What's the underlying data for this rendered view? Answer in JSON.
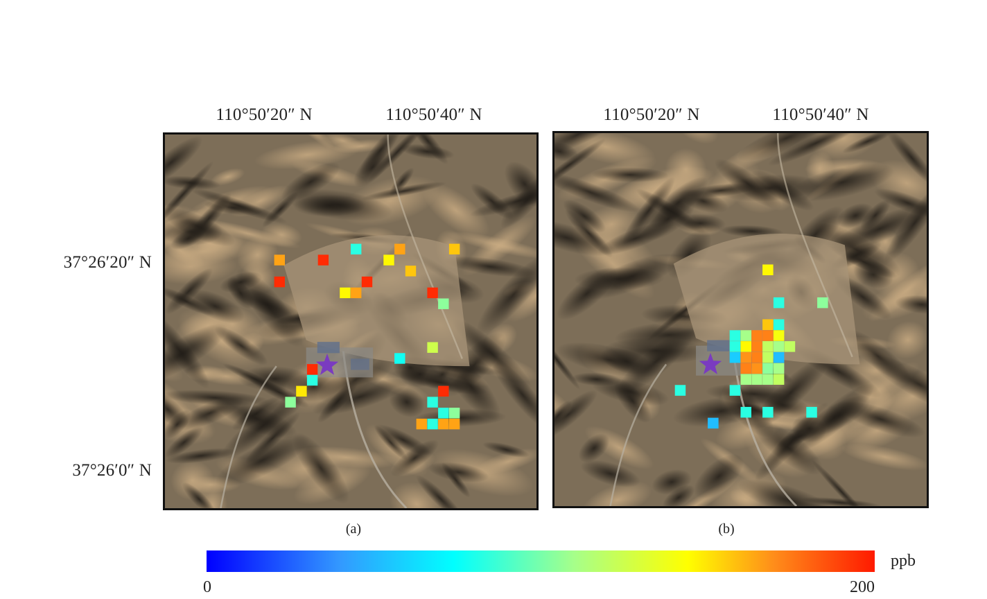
{
  "top_axis_labels": [
    "110°50′20″ N",
    "110°50′40″ N"
  ],
  "left_axis_labels": [
    "37°26′20″ N",
    "37°26′0″ N"
  ],
  "panels": [
    {
      "caption": "(a)",
      "source_marker": "star-icon",
      "cells": [
        {
          "col": 10,
          "row": 11,
          "value": 160
        },
        {
          "col": 14,
          "row": 11,
          "value": 195
        },
        {
          "col": 17,
          "row": 10,
          "value": 75
        },
        {
          "col": 21,
          "row": 10,
          "value": 160
        },
        {
          "col": 26,
          "row": 10,
          "value": 150
        },
        {
          "col": 20,
          "row": 11,
          "value": 135
        },
        {
          "col": 22,
          "row": 12,
          "value": 150
        },
        {
          "col": 10,
          "row": 13,
          "value": 195
        },
        {
          "col": 16,
          "row": 14,
          "value": 135
        },
        {
          "col": 17,
          "row": 14,
          "value": 160
        },
        {
          "col": 18,
          "row": 13,
          "value": 195
        },
        {
          "col": 24,
          "row": 14,
          "value": 195
        },
        {
          "col": 25,
          "row": 15,
          "value": 95
        },
        {
          "col": 24,
          "row": 19,
          "value": 115
        },
        {
          "col": 21,
          "row": 20,
          "value": 70
        },
        {
          "col": 13,
          "row": 21,
          "value": 195
        },
        {
          "col": 13,
          "row": 22,
          "value": 75
        },
        {
          "col": 12,
          "row": 23,
          "value": 140
        },
        {
          "col": 11,
          "row": 24,
          "value": 95
        },
        {
          "col": 25,
          "row": 23,
          "value": 195
        },
        {
          "col": 24,
          "row": 24,
          "value": 75
        },
        {
          "col": 24,
          "row": 26,
          "value": 75
        },
        {
          "col": 23,
          "row": 26,
          "value": 160
        },
        {
          "col": 25,
          "row": 25,
          "value": 75
        },
        {
          "col": 26,
          "row": 25,
          "value": 95
        },
        {
          "col": 25,
          "row": 26,
          "value": 160
        },
        {
          "col": 26,
          "row": 26,
          "value": 160
        }
      ]
    },
    {
      "caption": "(b)",
      "source_marker": "star-icon",
      "cells": [
        {
          "col": 19,
          "row": 12,
          "value": 135
        },
        {
          "col": 20,
          "row": 15,
          "value": 75
        },
        {
          "col": 24,
          "row": 15,
          "value": 95
        },
        {
          "col": 19,
          "row": 17,
          "value": 150
        },
        {
          "col": 20,
          "row": 17,
          "value": 75
        },
        {
          "col": 16,
          "row": 18,
          "value": 75
        },
        {
          "col": 17,
          "row": 18,
          "value": 100
        },
        {
          "col": 18,
          "row": 18,
          "value": 170
        },
        {
          "col": 19,
          "row": 18,
          "value": 170
        },
        {
          "col": 20,
          "row": 18,
          "value": 130
        },
        {
          "col": 16,
          "row": 19,
          "value": 75
        },
        {
          "col": 17,
          "row": 19,
          "value": 135
        },
        {
          "col": 18,
          "row": 19,
          "value": 170
        },
        {
          "col": 19,
          "row": 19,
          "value": 110
        },
        {
          "col": 20,
          "row": 19,
          "value": 100
        },
        {
          "col": 21,
          "row": 19,
          "value": 110
        },
        {
          "col": 16,
          "row": 20,
          "value": 50
        },
        {
          "col": 17,
          "row": 20,
          "value": 165
        },
        {
          "col": 18,
          "row": 20,
          "value": 170
        },
        {
          "col": 19,
          "row": 20,
          "value": 110
        },
        {
          "col": 20,
          "row": 20,
          "value": 45
        },
        {
          "col": 17,
          "row": 21,
          "value": 170
        },
        {
          "col": 18,
          "row": 21,
          "value": 165
        },
        {
          "col": 19,
          "row": 21,
          "value": 95
        },
        {
          "col": 20,
          "row": 21,
          "value": 100
        },
        {
          "col": 17,
          "row": 22,
          "value": 100
        },
        {
          "col": 18,
          "row": 22,
          "value": 100
        },
        {
          "col": 19,
          "row": 22,
          "value": 100
        },
        {
          "col": 20,
          "row": 22,
          "value": 110
        },
        {
          "col": 11,
          "row": 23,
          "value": 75
        },
        {
          "col": 16,
          "row": 23,
          "value": 75
        },
        {
          "col": 17,
          "row": 25,
          "value": 75
        },
        {
          "col": 19,
          "row": 25,
          "value": 75
        },
        {
          "col": 23,
          "row": 25,
          "value": 75
        },
        {
          "col": 14,
          "row": 26,
          "value": 45
        }
      ]
    }
  ],
  "colorbar": {
    "min_label": "0",
    "max_label": "200",
    "unit_label": "ppb",
    "range": [
      0,
      200
    ],
    "stops": [
      "#0000ff",
      "#3399ff",
      "#00ffff",
      "#a6ff8a",
      "#ffff00",
      "#ff8c1a",
      "#ff1a00"
    ]
  },
  "marker_color": "#7a3bc0"
}
